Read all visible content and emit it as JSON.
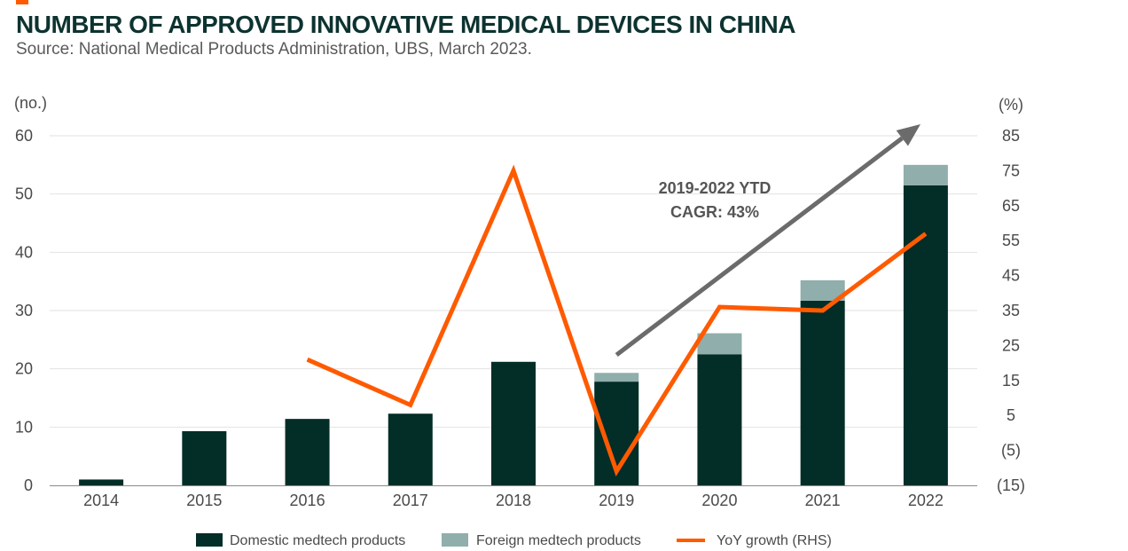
{
  "header": {
    "title": "NUMBER OF APPROVED INNOVATIVE MEDICAL DEVICES IN CHINA",
    "subtitle": "Source: National Medical Products Administration, UBS, March 2023."
  },
  "chart_data": {
    "type": "bar",
    "categories": [
      "2014",
      "2015",
      "2016",
      "2017",
      "2018",
      "2019",
      "2020",
      "2021",
      "2022"
    ],
    "series": [
      {
        "name": "Domestic medtech products",
        "type": "bar",
        "stack": "devices",
        "axis": "left",
        "color": "#032d27",
        "values": [
          1,
          9.3,
          11.4,
          12.3,
          21.2,
          17.8,
          22.5,
          31.7,
          51.5
        ]
      },
      {
        "name": "Foreign medtech products",
        "type": "bar",
        "stack": "devices",
        "axis": "left",
        "color": "#8faeac",
        "values": [
          0,
          0,
          0,
          0,
          0,
          1.5,
          3.6,
          3.5,
          3.5
        ]
      },
      {
        "name": "YoY growth (RHS)",
        "type": "line",
        "axis": "right",
        "color": "#ff5a00",
        "values": [
          null,
          null,
          21,
          8,
          75,
          -11,
          36,
          35,
          57
        ]
      }
    ],
    "left_axis": {
      "unit": "(no.)",
      "min": 0,
      "max": 60,
      "ticks": [
        "0",
        "10",
        "20",
        "30",
        "40",
        "50",
        "60"
      ]
    },
    "right_axis": {
      "unit": "(%)",
      "min": -15,
      "max": 85,
      "ticks": [
        "(15)",
        "(5)",
        "5",
        "15",
        "25",
        "35",
        "45",
        "55",
        "65",
        "75",
        "85"
      ]
    },
    "grid": "horizontal",
    "legend_position": "bottom",
    "annotation": {
      "lines": [
        "2019-2022 YTD",
        "CAGR: 43%"
      ],
      "arrow": "2019 to 2022",
      "arrow_color": "#6b6b6b"
    }
  }
}
